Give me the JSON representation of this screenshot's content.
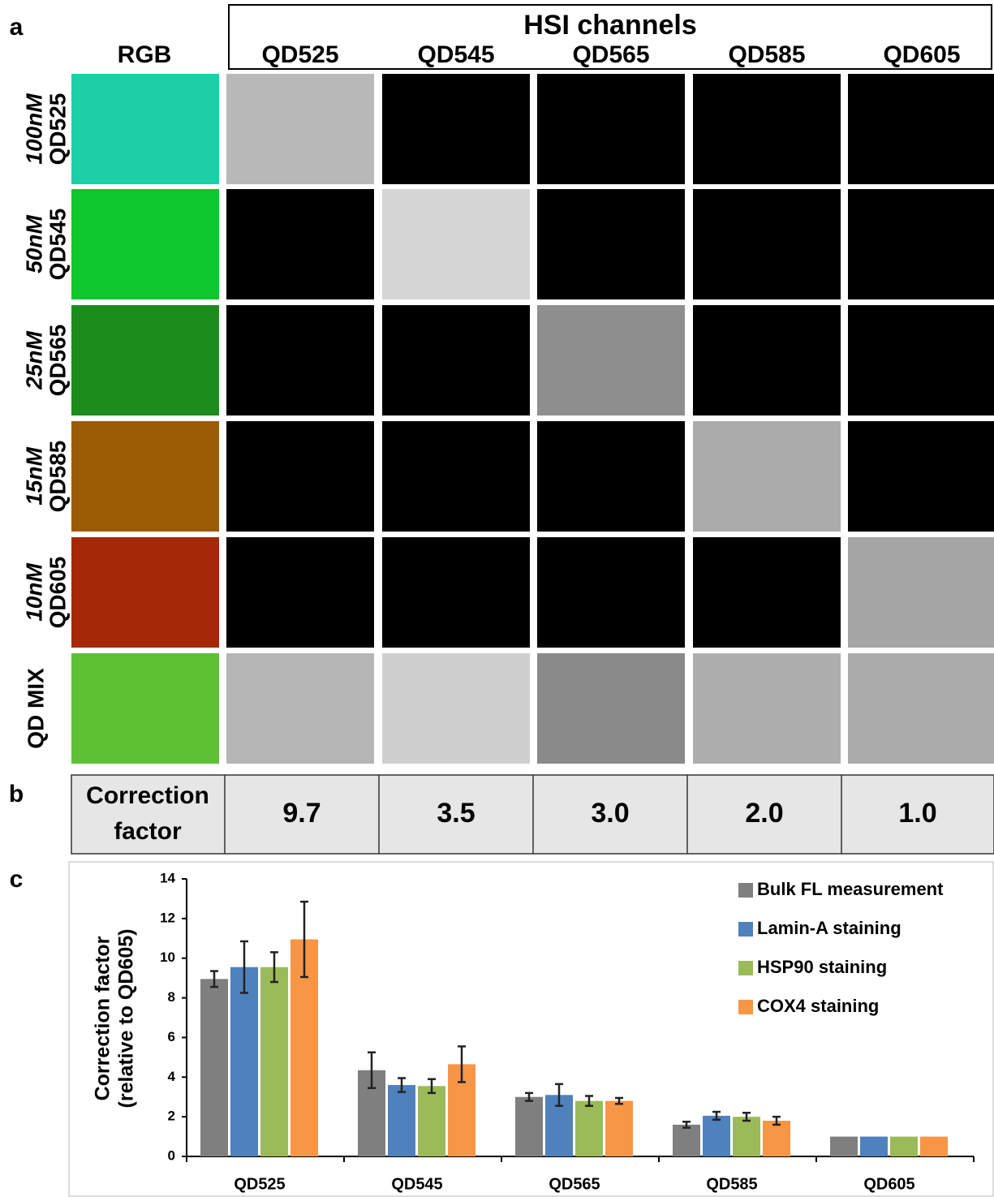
{
  "panel_labels": [
    "a",
    "b",
    "c"
  ],
  "grid": {
    "title": "HSI channels",
    "columns": [
      "RGB",
      "QD525",
      "QD545",
      "QD565",
      "QD585",
      "QD605"
    ],
    "rows": [
      {
        "concentration": "100nM",
        "name": "QD525",
        "colors": [
          "#1dcfa4",
          "#b9b9b9",
          "#000000",
          "#000000",
          "#000000",
          "#000000"
        ]
      },
      {
        "concentration": "50nM",
        "name": "QD545",
        "colors": [
          "#0ec72c",
          "#000000",
          "#d6d6d6",
          "#000000",
          "#000000",
          "#000000"
        ]
      },
      {
        "concentration": "25nM",
        "name": "QD565",
        "colors": [
          "#1c8c1c",
          "#000000",
          "#000000",
          "#8e8e8e",
          "#000000",
          "#000000"
        ]
      },
      {
        "concentration": "15nM",
        "name": "QD585",
        "colors": [
          "#9a5a06",
          "#000000",
          "#000000",
          "#000000",
          "#ababab",
          "#000000"
        ]
      },
      {
        "concentration": "10nM",
        "name": "QD605",
        "colors": [
          "#a52808",
          "#000000",
          "#000000",
          "#000000",
          "#000000",
          "#a5a5a5"
        ]
      },
      {
        "name": "QD MIX",
        "colors": [
          "#5ec035",
          "#b5b5b5",
          "#cfcfcf",
          "#8a8a8a",
          "#aeaeae",
          "#ababab"
        ]
      }
    ]
  },
  "table": {
    "label_lines": [
      "Correction",
      "factor"
    ],
    "values": [
      "9.7",
      "3.5",
      "3.0",
      "2.0",
      "1.0"
    ]
  },
  "chart_data": {
    "type": "bar",
    "categories": [
      "QD525",
      "QD545",
      "QD565",
      "QD585",
      "QD605"
    ],
    "ylabel_lines": [
      "Correction factor",
      "(relative to QD605)"
    ],
    "ylim": [
      0,
      14
    ],
    "yticks": [
      0,
      2,
      4,
      6,
      8,
      10,
      12,
      14
    ],
    "legend": "top-right",
    "series": [
      {
        "name": "Bulk FL measurement",
        "color": "#7f7f7f",
        "values": [
          8.95,
          4.35,
          3.0,
          1.6,
          1.0
        ],
        "errors": [
          0.4,
          0.9,
          0.2,
          0.15,
          0
        ]
      },
      {
        "name": "Lamin-A staining",
        "color": "#4f81bd",
        "values": [
          9.55,
          3.6,
          3.1,
          2.05,
          1.0
        ],
        "errors": [
          1.3,
          0.35,
          0.55,
          0.2,
          0
        ]
      },
      {
        "name": "HSP90 staining",
        "color": "#9bbb59",
        "values": [
          9.55,
          3.55,
          2.8,
          2.0,
          1.0
        ],
        "errors": [
          0.75,
          0.35,
          0.25,
          0.2,
          0
        ]
      },
      {
        "name": "COX4 staining",
        "color": "#f79646",
        "values": [
          10.95,
          4.65,
          2.8,
          1.8,
          1.0
        ],
        "errors": [
          1.9,
          0.9,
          0.15,
          0.2,
          0
        ]
      }
    ]
  }
}
